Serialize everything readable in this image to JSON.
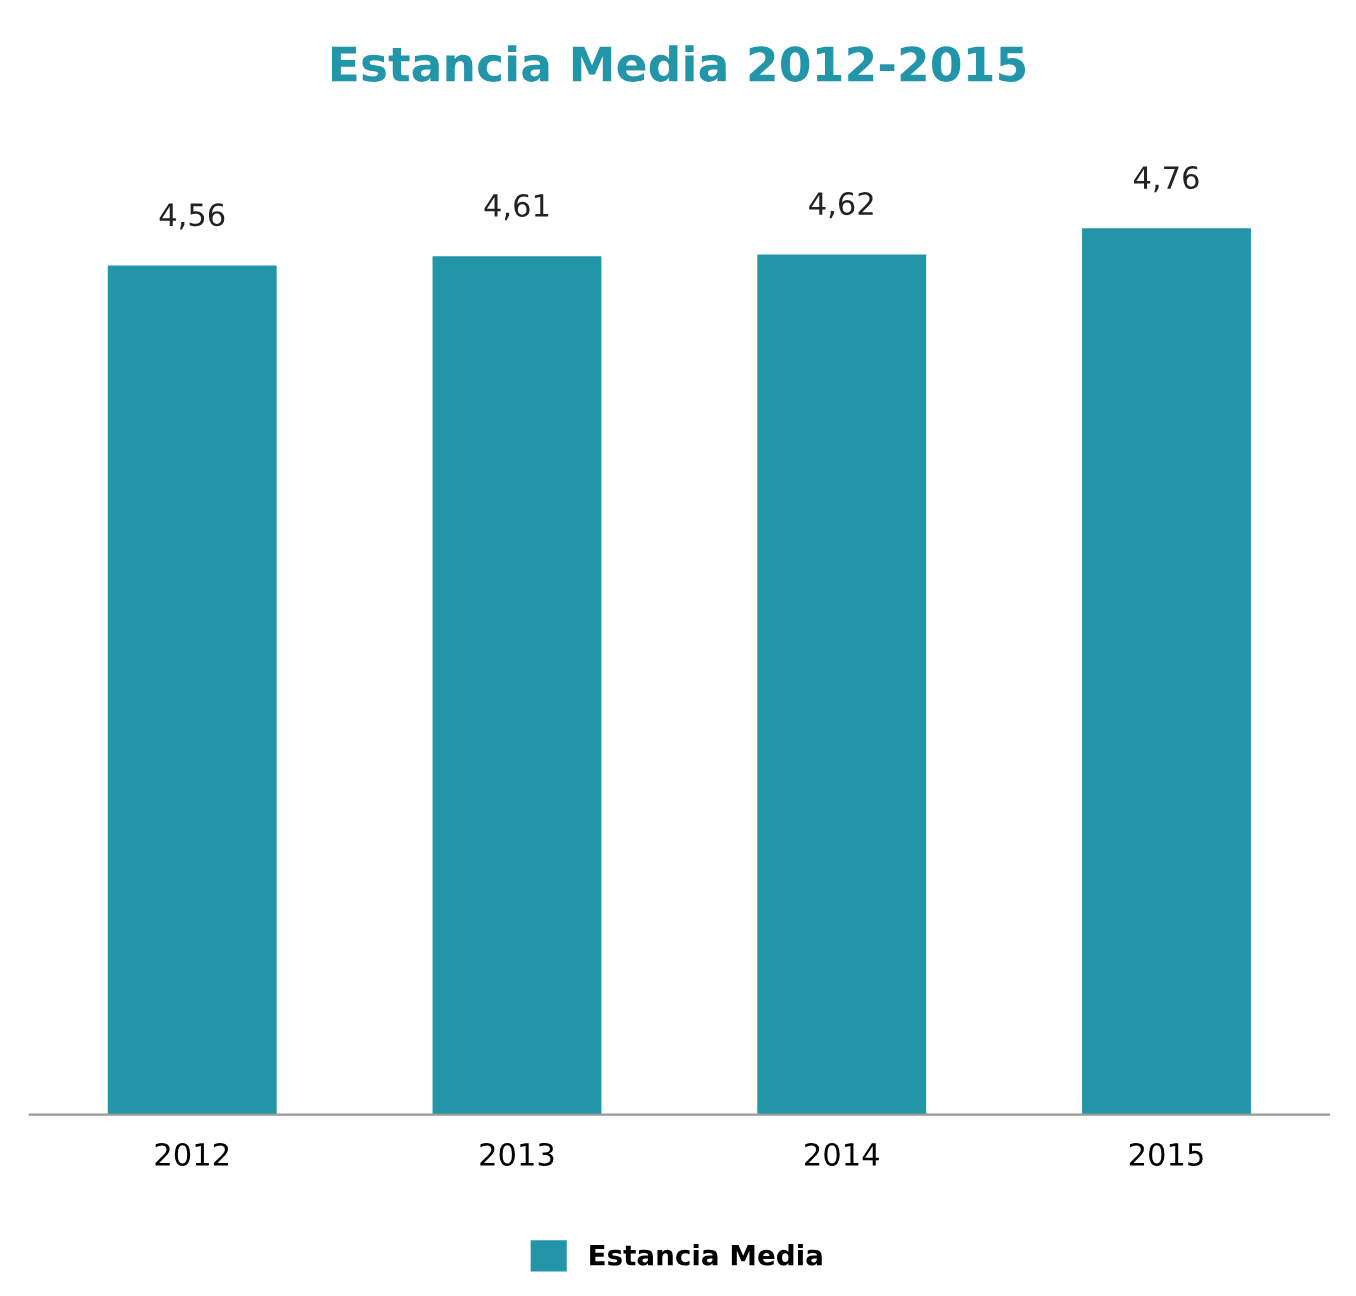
{
  "chart_data": {
    "type": "bar",
    "title": "Estancia Media 2012-2015",
    "categories": [
      "2012",
      "2013",
      "2014",
      "2015"
    ],
    "series": [
      {
        "name": "Estancia Media",
        "color": "#2395a8",
        "values": [
          4.56,
          4.61,
          4.62,
          4.76
        ],
        "value_labels": [
          "4,56",
          "4,61",
          "4,62",
          "4,76"
        ]
      }
    ],
    "tick_labels": "x",
    "grid": false,
    "legend": "bottom"
  }
}
